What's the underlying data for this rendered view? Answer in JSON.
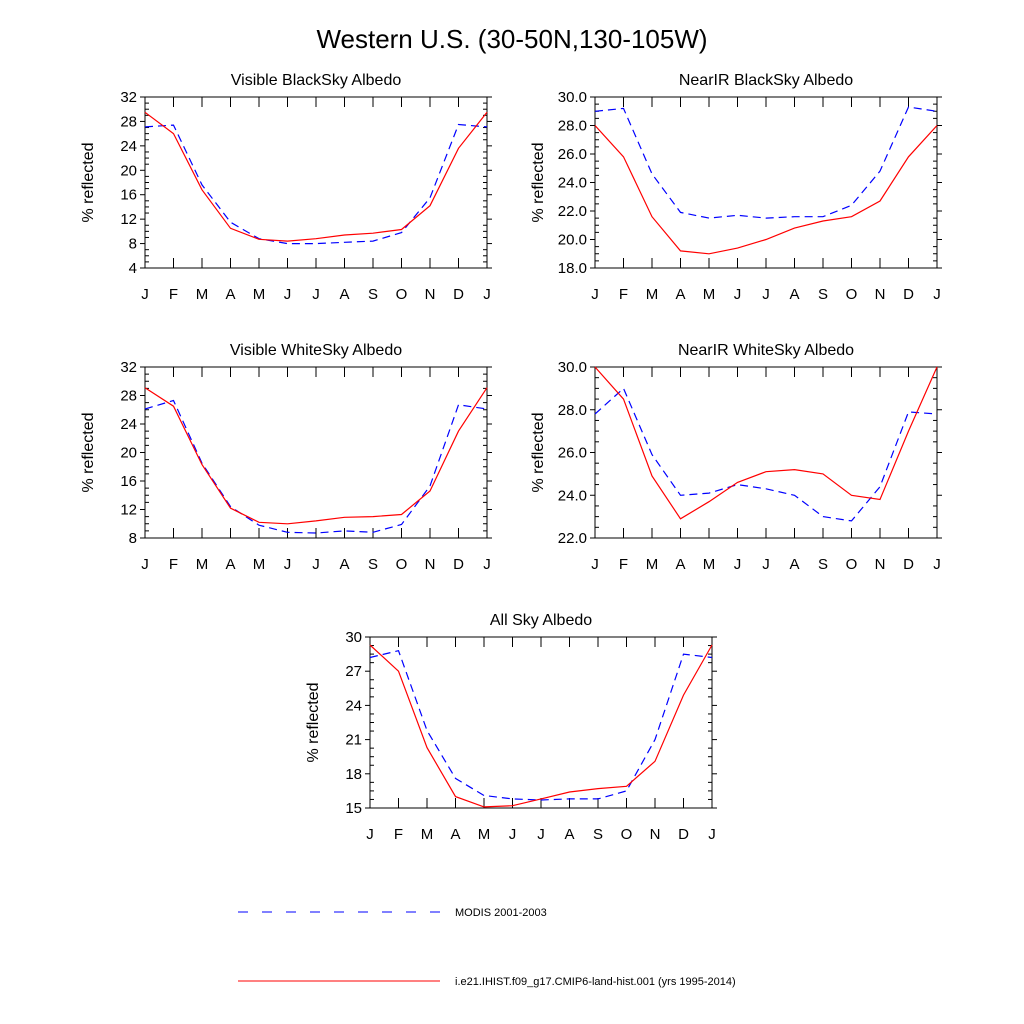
{
  "figure": {
    "title": "Western U.S. (30-50N,130-105W)"
  },
  "chart_data": [
    {
      "type": "line",
      "title": "Visible BlackSky Albedo",
      "ylabel": "% reflected",
      "x": [
        "J",
        "F",
        "M",
        "A",
        "M",
        "J",
        "J",
        "A",
        "S",
        "O",
        "N",
        "D",
        "J"
      ],
      "ylim": [
        4,
        32
      ],
      "yticks": [
        "4",
        "8",
        "12",
        "16",
        "20",
        "24",
        "28",
        "32"
      ],
      "series": [
        {
          "name": "MODIS 2001-2003",
          "color": "#0000ff",
          "dash": "dashed",
          "values": [
            27.1,
            27.4,
            17.6,
            11.5,
            8.8,
            8.0,
            8.0,
            8.2,
            8.4,
            9.8,
            15.5,
            27.5,
            27.1
          ]
        },
        {
          "name": "i.e21.IHIST.f09_g17.CMIP6-land-hist.001 (yrs 1995-2014)",
          "color": "#ff0000",
          "dash": "solid",
          "values": [
            29.5,
            26.0,
            16.8,
            10.5,
            8.7,
            8.4,
            8.8,
            9.4,
            9.7,
            10.3,
            14.2,
            23.6,
            29.5
          ]
        }
      ]
    },
    {
      "type": "line",
      "title": "NearIR BlackSky Albedo",
      "ylabel": "% reflected",
      "x": [
        "J",
        "F",
        "M",
        "A",
        "M",
        "J",
        "J",
        "A",
        "S",
        "O",
        "N",
        "D",
        "J"
      ],
      "ylim": [
        18,
        30
      ],
      "yticks": [
        "18.0",
        "20.0",
        "22.0",
        "24.0",
        "26.0",
        "28.0",
        "30.0"
      ],
      "series": [
        {
          "name": "MODIS 2001-2003",
          "color": "#0000ff",
          "dash": "dashed",
          "values": [
            29.0,
            29.2,
            24.6,
            21.9,
            21.5,
            21.7,
            21.5,
            21.6,
            21.6,
            22.4,
            24.8,
            29.3,
            29.0
          ]
        },
        {
          "name": "i.e21.IHIST.f09_g17.CMIP6-land-hist.001 (yrs 1995-2014)",
          "color": "#ff0000",
          "dash": "solid",
          "values": [
            28.0,
            25.8,
            21.6,
            19.2,
            19.0,
            19.4,
            20.0,
            20.8,
            21.3,
            21.6,
            22.7,
            25.8,
            28.0
          ]
        }
      ]
    },
    {
      "type": "line",
      "title": "Visible WhiteSky Albedo",
      "ylabel": "% reflected",
      "x": [
        "J",
        "F",
        "M",
        "A",
        "M",
        "J",
        "J",
        "A",
        "S",
        "O",
        "N",
        "D",
        "J"
      ],
      "ylim": [
        8,
        32
      ],
      "yticks": [
        "8",
        "12",
        "16",
        "20",
        "24",
        "28",
        "32"
      ],
      "series": [
        {
          "name": "MODIS 2001-2003",
          "color": "#0000ff",
          "dash": "dashed",
          "values": [
            26.1,
            27.3,
            18.5,
            12.4,
            9.8,
            8.8,
            8.7,
            9.0,
            8.8,
            9.9,
            15.3,
            26.7,
            26.1
          ]
        },
        {
          "name": "i.e21.IHIST.f09_g17.CMIP6-land-hist.001 (yrs 1995-2014)",
          "color": "#ff0000",
          "dash": "solid",
          "values": [
            29.1,
            26.5,
            18.3,
            12.2,
            10.2,
            10.0,
            10.4,
            10.9,
            11.0,
            11.3,
            14.6,
            23.0,
            29.1
          ]
        }
      ]
    },
    {
      "type": "line",
      "title": "NearIR WhiteSky Albedo",
      "ylabel": "% reflected",
      "x": [
        "J",
        "F",
        "M",
        "A",
        "M",
        "J",
        "J",
        "A",
        "S",
        "O",
        "N",
        "D",
        "J"
      ],
      "ylim": [
        22,
        30
      ],
      "yticks": [
        "22.0",
        "24.0",
        "26.0",
        "28.0",
        "30.0"
      ],
      "series": [
        {
          "name": "MODIS 2001-2003",
          "color": "#0000ff",
          "dash": "dashed",
          "values": [
            27.8,
            29.0,
            25.9,
            24.0,
            24.1,
            24.5,
            24.3,
            24.0,
            23.0,
            22.8,
            24.4,
            27.9,
            27.8
          ]
        },
        {
          "name": "i.e21.IHIST.f09_g17.CMIP6-land-hist.001 (yrs 1995-2014)",
          "color": "#ff0000",
          "dash": "solid",
          "values": [
            30.0,
            28.5,
            24.9,
            22.9,
            23.7,
            24.6,
            25.1,
            25.2,
            25.0,
            24.0,
            23.8,
            27.0,
            30.0
          ]
        }
      ]
    },
    {
      "type": "line",
      "title": "All Sky Albedo",
      "ylabel": "% reflected",
      "x": [
        "J",
        "F",
        "M",
        "A",
        "M",
        "J",
        "J",
        "A",
        "S",
        "O",
        "N",
        "D",
        "J"
      ],
      "ylim": [
        15,
        30
      ],
      "yticks": [
        "15",
        "18",
        "21",
        "24",
        "27",
        "30"
      ],
      "series": [
        {
          "name": "MODIS 2001-2003",
          "color": "#0000ff",
          "dash": "dashed",
          "values": [
            28.2,
            28.8,
            21.8,
            17.6,
            16.1,
            15.8,
            15.7,
            15.8,
            15.8,
            16.5,
            21.0,
            28.5,
            28.2
          ]
        },
        {
          "name": "i.e21.IHIST.f09_g17.CMIP6-land-hist.001 (yrs 1995-2014)",
          "color": "#ff0000",
          "dash": "solid",
          "values": [
            29.3,
            27.0,
            20.3,
            16.0,
            15.1,
            15.2,
            15.8,
            16.4,
            16.7,
            16.9,
            19.1,
            24.9,
            29.3
          ]
        }
      ]
    }
  ],
  "legend": {
    "entries": [
      {
        "label": "MODIS 2001-2003",
        "color": "#0000ff",
        "dash": "dashed"
      },
      {
        "label": "i.e21.IHIST.f09_g17.CMIP6-land-hist.001 (yrs 1995-2014)",
        "color": "#ff0000",
        "dash": "solid"
      }
    ]
  }
}
